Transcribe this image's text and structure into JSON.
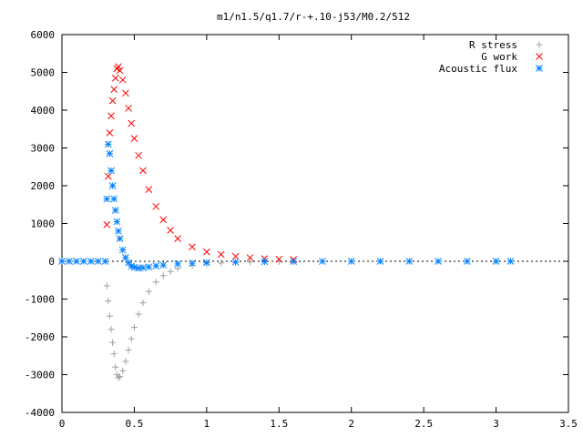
{
  "chart_data": {
    "type": "scatter",
    "title": "m1/n1.5/q1.7/r-+.10-j53/M0.2/512",
    "xlabel": "",
    "ylabel": "",
    "xlim": [
      0,
      3.5
    ],
    "ylim": [
      -4000,
      6000
    ],
    "x_ticks": [
      0,
      0.5,
      1,
      1.5,
      2,
      2.5,
      3,
      3.5
    ],
    "x_tick_labels": [
      "0",
      "0.5",
      "1",
      "1.5",
      "2",
      "2.5",
      "3",
      "3.5"
    ],
    "y_ticks": [
      -4000,
      -3000,
      -2000,
      -1000,
      0,
      1000,
      2000,
      3000,
      4000,
      5000,
      6000
    ],
    "y_tick_labels": [
      "-4000",
      "-3000",
      "-2000",
      "-1000",
      "0",
      "1000",
      "2000",
      "3000",
      "4000",
      "5000",
      "6000"
    ],
    "grid": false,
    "legend_position": "top-right",
    "series": [
      {
        "name": "R stress",
        "marker": "plus",
        "color": "#a0a0a0",
        "x": [
          0.31,
          0.32,
          0.33,
          0.34,
          0.35,
          0.36,
          0.37,
          0.38,
          0.39,
          0.4,
          0.42,
          0.44,
          0.46,
          0.48,
          0.5,
          0.53,
          0.56,
          0.6,
          0.65,
          0.7,
          0.75,
          0.8,
          0.9,
          1.0,
          1.1,
          1.2,
          1.3,
          1.4,
          1.5,
          1.6
        ],
        "values": [
          -650,
          -1050,
          -1450,
          -1800,
          -2150,
          -2450,
          -2800,
          -3000,
          -3080,
          -3050,
          -2900,
          -2650,
          -2350,
          -2050,
          -1750,
          -1400,
          -1100,
          -800,
          -550,
          -380,
          -270,
          -190,
          -110,
          -70,
          -45,
          -30,
          -20,
          -12,
          -8,
          -5
        ]
      },
      {
        "name": "G work",
        "marker": "cross",
        "color": "#ff0000",
        "x": [
          0.31,
          0.32,
          0.33,
          0.34,
          0.35,
          0.36,
          0.37,
          0.38,
          0.39,
          0.4,
          0.42,
          0.44,
          0.46,
          0.48,
          0.5,
          0.53,
          0.56,
          0.6,
          0.65,
          0.7,
          0.75,
          0.8,
          0.9,
          1.0,
          1.1,
          1.2,
          1.3,
          1.4,
          1.5,
          1.6
        ],
        "values": [
          970,
          2250,
          3400,
          3850,
          4250,
          4550,
          4850,
          5100,
          5150,
          5050,
          4800,
          4450,
          4050,
          3650,
          3250,
          2800,
          2400,
          1900,
          1450,
          1100,
          820,
          600,
          380,
          250,
          180,
          130,
          95,
          70,
          55,
          45
        ]
      },
      {
        "name": "Acoustic flux",
        "marker": "star",
        "color": "#0080ff",
        "x": [
          0.0,
          0.05,
          0.1,
          0.15,
          0.2,
          0.25,
          0.3,
          0.31,
          0.32,
          0.33,
          0.34,
          0.35,
          0.36,
          0.37,
          0.38,
          0.39,
          0.4,
          0.42,
          0.44,
          0.46,
          0.48,
          0.5,
          0.53,
          0.56,
          0.6,
          0.65,
          0.7,
          0.8,
          0.9,
          1.0,
          1.2,
          1.4,
          1.6,
          1.8,
          2.0,
          2.2,
          2.4,
          2.6,
          2.8,
          3.0,
          3.1
        ],
        "values": [
          0,
          0,
          0,
          0,
          0,
          0,
          0,
          1650,
          3100,
          2850,
          2400,
          2000,
          1650,
          1350,
          1050,
          800,
          600,
          300,
          100,
          -40,
          -130,
          -160,
          -180,
          -170,
          -150,
          -120,
          -100,
          -70,
          -50,
          -35,
          -20,
          -10,
          -5,
          -2,
          0,
          0,
          0,
          0,
          0,
          0,
          0
        ]
      }
    ]
  }
}
